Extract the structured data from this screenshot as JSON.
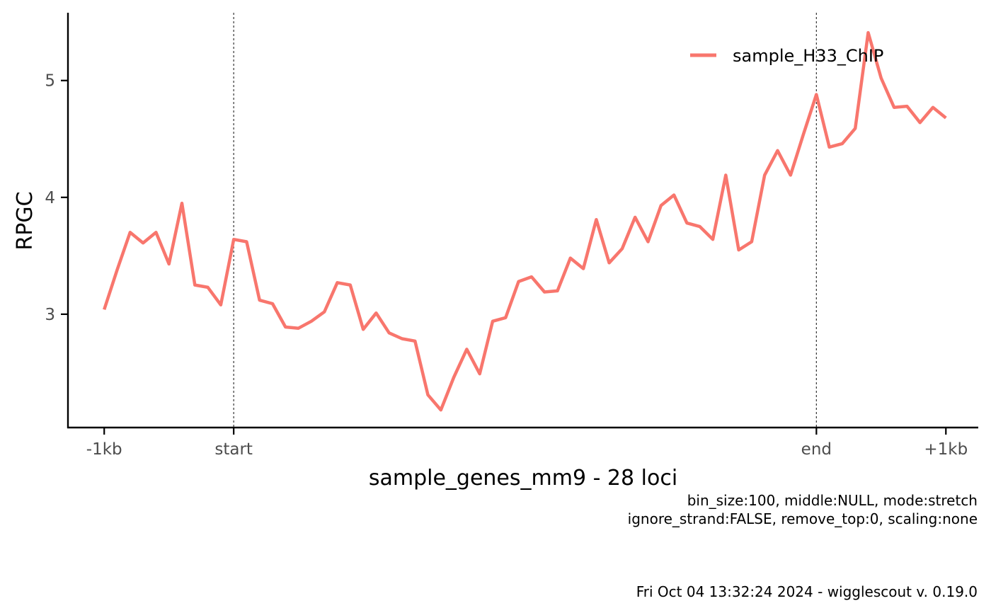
{
  "chart_data": {
    "type": "line",
    "title": "",
    "xlabel": "sample_genes_mm9 - 28 loci",
    "ylabel": "RPGC",
    "x_ticks": [
      {
        "pos": 0,
        "label": "-1kb"
      },
      {
        "pos": 10,
        "label": "start"
      },
      {
        "pos": 55,
        "label": "end"
      },
      {
        "pos": 65,
        "label": "+1kb"
      }
    ],
    "vlines": [
      10,
      55
    ],
    "y_ticks": [
      3,
      4,
      5
    ],
    "xlim": [
      -2.8,
      67.5
    ],
    "ylim": [
      2.03,
      5.58
    ],
    "legend": {
      "position": "top-right"
    },
    "series": [
      {
        "name": "sample_H33_ChIP",
        "color": "#F8766D",
        "x": [
          0,
          1,
          2,
          3,
          4,
          5,
          6,
          7,
          8,
          9,
          10,
          11,
          12,
          13,
          14,
          15,
          16,
          17,
          18,
          19,
          20,
          21,
          22,
          23,
          24,
          25,
          26,
          27,
          28,
          29,
          30,
          31,
          32,
          33,
          34,
          35,
          36,
          37,
          38,
          39,
          40,
          41,
          42,
          43,
          44,
          45,
          46,
          47,
          48,
          49,
          50,
          51,
          52,
          53,
          54,
          55,
          56,
          57,
          58,
          59,
          60,
          61,
          62,
          63,
          64,
          65
        ],
        "values": [
          3.04,
          3.38,
          3.7,
          3.61,
          3.7,
          3.43,
          3.95,
          3.25,
          3.23,
          3.08,
          3.64,
          3.62,
          3.12,
          3.09,
          2.89,
          2.88,
          2.94,
          3.02,
          3.27,
          3.25,
          2.87,
          3.01,
          2.84,
          2.79,
          2.77,
          2.31,
          2.18,
          2.46,
          2.7,
          2.49,
          2.94,
          2.97,
          3.28,
          3.32,
          3.19,
          3.2,
          3.48,
          3.39,
          3.81,
          3.44,
          3.56,
          3.83,
          3.62,
          3.93,
          4.02,
          3.78,
          3.75,
          3.64,
          4.19,
          3.55,
          3.62,
          4.19,
          4.4,
          4.19,
          4.54,
          4.88,
          4.43,
          4.46,
          4.59,
          5.41,
          5.02,
          4.77,
          4.78,
          4.64,
          4.77,
          4.68
        ]
      }
    ]
  },
  "caption": {
    "line1": "bin_size:100, middle:NULL, mode:stretch",
    "line2": "ignore_strand:FALSE, remove_top:0, scaling:none",
    "footer": "Fri Oct 04 13:32:24 2024 - wigglescout v. 0.19.0"
  }
}
